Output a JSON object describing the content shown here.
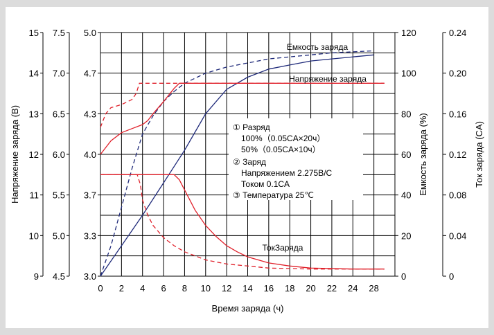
{
  "chart_data": {
    "type": "line",
    "xlabel": "Время заряда (ч)",
    "x_ticks": [
      "0",
      "2",
      "4",
      "6",
      "8",
      "10",
      "12",
      "14",
      "16",
      "18",
      "20",
      "22",
      "24",
      "28"
    ],
    "xlim": [
      0,
      28
    ],
    "left_axes": [
      {
        "label": "Напряжение заряда (В)",
        "ticks": [
          "9",
          "10",
          "11",
          "12",
          "13",
          "14",
          "15"
        ]
      },
      {
        "label": "",
        "ticks": [
          "4.5",
          "5.0",
          "5.5",
          "6.0",
          "6.5",
          "7.0",
          "7.5"
        ]
      },
      {
        "label": "",
        "ticks": [
          "3.0",
          "3.3",
          "3.7",
          "4.0",
          "4.3",
          "4.7",
          "5.0"
        ]
      }
    ],
    "right_axes": [
      {
        "label": "Емкость заряда (%)",
        "ticks": [
          "0",
          "20",
          "40",
          "60",
          "80",
          "100",
          "120"
        ]
      },
      {
        "label": "Ток заряда (CA)",
        "ticks": [
          "0",
          "0.04",
          "0.08",
          "0.12",
          "0.16",
          "0.20",
          "0.24"
        ]
      }
    ],
    "series": [
      {
        "name": "Емкость заряда",
        "style": "solid",
        "color": "#1f2a7a",
        "x": [
          0,
          2,
          4,
          6,
          8,
          10,
          12,
          14,
          16,
          18,
          20,
          22,
          24,
          26
        ],
        "y": [
          0,
          15,
          30,
          46,
          62,
          80,
          92,
          98,
          102,
          104,
          106,
          107,
          108,
          109
        ]
      },
      {
        "name": "Емкость заряда",
        "style": "dashed",
        "color": "#1f2a7a",
        "x": [
          0,
          1,
          2,
          3,
          4,
          5,
          6,
          7,
          8,
          10,
          12,
          14,
          16,
          18,
          20,
          22,
          24,
          26
        ],
        "y": [
          0,
          15,
          34,
          53,
          70,
          79,
          86,
          91,
          95,
          100,
          103,
          105,
          107,
          108,
          109,
          110,
          110.5,
          111
        ]
      },
      {
        "name": "Напряжение заряда",
        "style": "solid",
        "color": "#e0202a",
        "x": [
          0,
          1,
          2,
          3,
          4,
          4.5,
          5,
          6,
          7,
          7.5,
          8,
          27
        ],
        "y": [
          4.0,
          4.1,
          4.16,
          4.19,
          4.22,
          4.25,
          4.3,
          4.42,
          4.55,
          4.6,
          4.6,
          4.6
        ]
      },
      {
        "name": "Напряжение заряда",
        "style": "dashed",
        "color": "#e0202a",
        "x": [
          0,
          0.5,
          1,
          2,
          3,
          3.4,
          3.7,
          4,
          27
        ],
        "y": [
          4.2,
          4.3,
          4.36,
          4.39,
          4.44,
          4.5,
          4.6,
          4.6,
          4.6
        ]
      },
      {
        "name": "Ток заряда",
        "style": "solid",
        "color": "#e0202a",
        "x": [
          0,
          7,
          7.5,
          8,
          9,
          10,
          11,
          12,
          13,
          14,
          16,
          18,
          20,
          24,
          27
        ],
        "y": [
          0.1,
          0.1,
          0.095,
          0.085,
          0.065,
          0.05,
          0.039,
          0.03,
          0.024,
          0.019,
          0.013,
          0.01,
          0.008,
          0.007,
          0.007
        ]
      },
      {
        "name": "Ток заряда",
        "style": "dashed",
        "color": "#e0202a",
        "x": [
          0,
          3.5,
          3.8,
          4,
          4.5,
          5,
          6,
          7,
          8,
          10,
          12,
          14,
          16,
          20,
          27
        ],
        "y": [
          0.1,
          0.1,
          0.09,
          0.075,
          0.06,
          0.05,
          0.038,
          0.03,
          0.024,
          0.016,
          0.012,
          0.01,
          0.008,
          0.007,
          0.007
        ]
      }
    ],
    "annotations": {
      "cap_label": "Емкость заряда",
      "volt_label": "Напряжение заряда",
      "curr_label": "ТокЗаряда"
    },
    "legend_lines": [
      "①  Разряд",
      "100%（0.05CA×20ч）",
      "50%（0.05CA×10ч）",
      "②  Заряд",
      "Напряжением 2.275В/С",
      "Током 0.1CA",
      "③  Температура 25℃"
    ],
    "grid": true
  }
}
